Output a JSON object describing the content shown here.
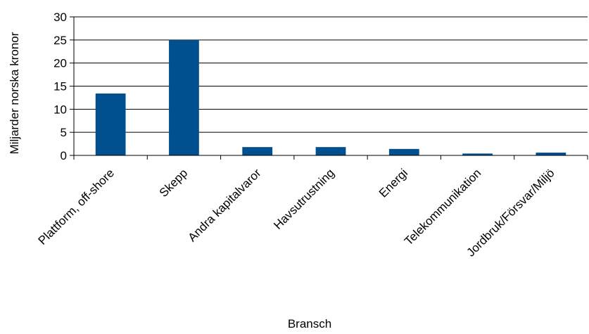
{
  "chart_data": {
    "type": "bar",
    "categories": [
      "Plattform, off-shore",
      "Skepp",
      "Andra kapitalvaror",
      "Havsutrustning",
      "Energi",
      "Telekommunikation",
      "Jordbruk/Försvar/Miljö"
    ],
    "values": [
      13.4,
      25.0,
      1.8,
      1.8,
      1.4,
      0.4,
      0.6
    ],
    "xlabel": "Bransch",
    "ylabel": "Miljarder norska kronor",
    "ylim": [
      0,
      30
    ],
    "yticks": [
      0,
      5,
      10,
      15,
      20,
      25,
      30
    ],
    "grid": true,
    "bar_color": "#00508F"
  }
}
